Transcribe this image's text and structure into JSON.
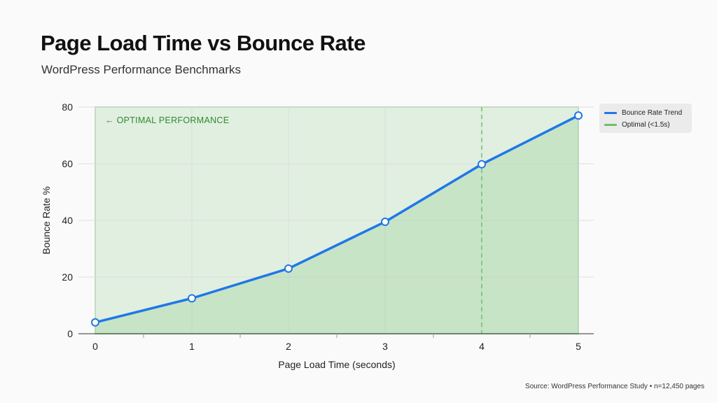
{
  "header": {
    "title": "Page Load Time vs Bounce Rate",
    "subtitle": "WordPress Performance Benchmarks"
  },
  "footer": {
    "source": "Source: WordPress Performance Study • n=12,450 pages"
  },
  "colors": {
    "series_line": "#1f77e8",
    "optimal_zone": "#6cbf6c",
    "optimal_text": "#2e8b2e",
    "grid": "#dddddd",
    "axis": "#333333"
  },
  "chart_data": {
    "type": "line",
    "xlabel": "Page Load Time (seconds)",
    "ylabel": "Bounce Rate %",
    "xlim": [
      0,
      5
    ],
    "ylim": [
      0,
      80
    ],
    "x_ticks": [
      0,
      1,
      2,
      3,
      4,
      5
    ],
    "y_ticks": [
      0,
      20,
      40,
      60,
      80
    ],
    "grid": true,
    "legend_position": "top-right",
    "series": [
      {
        "name": "Bounce Rate Trend",
        "x": [
          0,
          1,
          2,
          3,
          4,
          5
        ],
        "y": [
          4,
          12.5,
          23,
          39.5,
          59.8,
          77
        ]
      }
    ],
    "optimal_zone": {
      "name": "Optimal (<1.5s)",
      "annotation": "OPTIMAL PERFORMANCE",
      "arrow": "←"
    },
    "reference_line_x": 4
  }
}
